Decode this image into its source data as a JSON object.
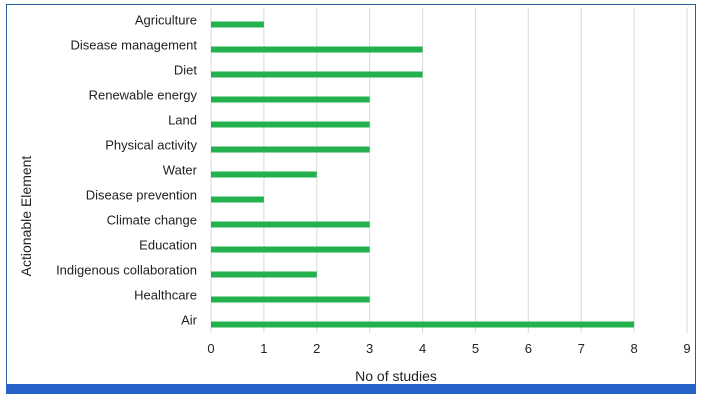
{
  "chart_data": {
    "type": "bar",
    "orientation": "horizontal",
    "title": "",
    "xlabel": "No of studies",
    "ylabel": "Actionable Element",
    "xlim": [
      0,
      9
    ],
    "x_ticks": [
      "0",
      "1",
      "2",
      "3",
      "4",
      "5",
      "6",
      "7",
      "8",
      "9"
    ],
    "grid": "vertical",
    "legend": "none",
    "bar_color": "#22b14c",
    "categories": [
      "Agriculture",
      "Disease management",
      "Diet",
      "Renewable energy",
      "Land",
      "Physical activity",
      "Water",
      "Disease prevention",
      "Climate change",
      "Education",
      "Indigenous collaboration",
      "Healthcare",
      "Air"
    ],
    "values": [
      1,
      4,
      4,
      3,
      3,
      3,
      2,
      1,
      3,
      3,
      2,
      3,
      8
    ]
  },
  "colors": {
    "frame_border": "#2b5a9e",
    "bottom_band": "#2563c9",
    "grid": "#d9d9d9"
  }
}
